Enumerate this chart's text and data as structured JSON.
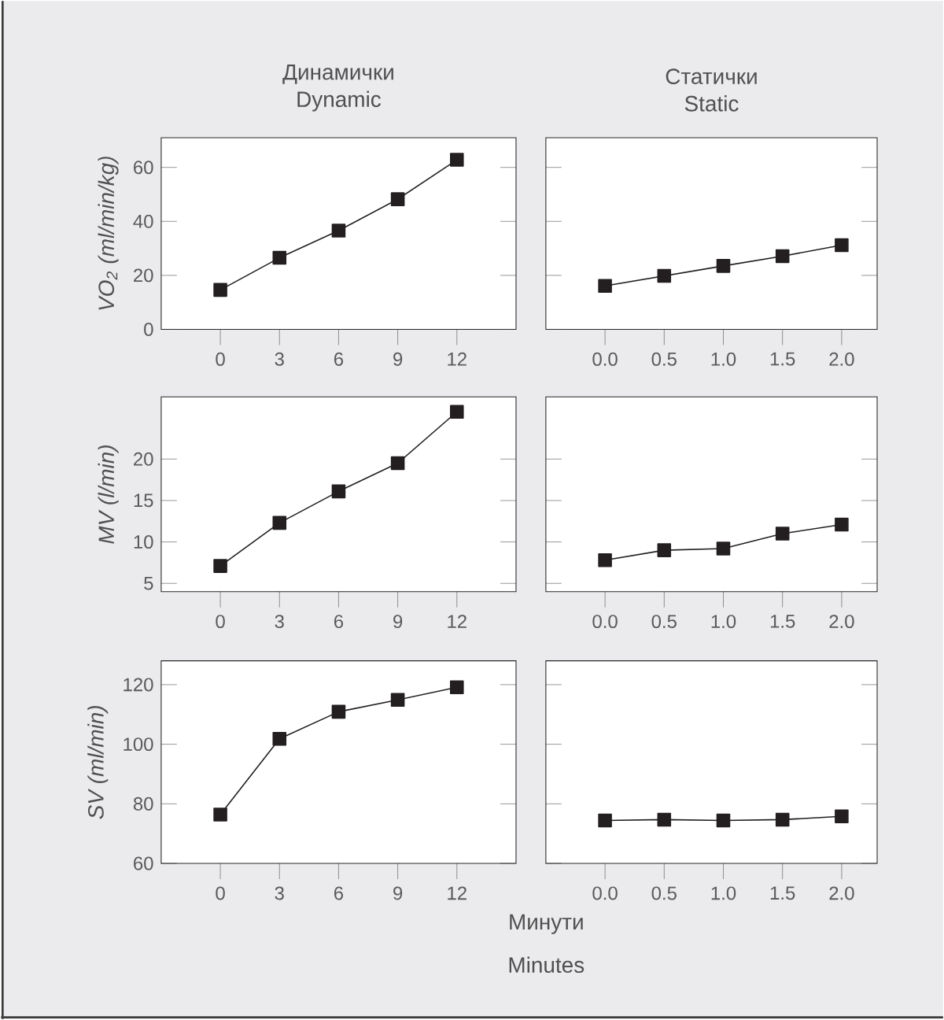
{
  "chart_data": [
    {
      "type": "line",
      "title": "Динамички",
      "subtitle": "Dynamic",
      "ylabel": "VO$_{2}$ (ml/min/kg)",
      "x": [
        0,
        3,
        6,
        9,
        12
      ],
      "values": [
        14.6,
        26.5,
        36.6,
        48.2,
        62.8
      ],
      "color": "#231f20",
      "marker": "square",
      "xlim": [
        -3,
        15
      ],
      "xticks": [
        0,
        3,
        6,
        9,
        12
      ],
      "ylim": [
        0,
        71
      ],
      "yticks": [
        0,
        20,
        40,
        60
      ]
    },
    {
      "type": "line",
      "title": "Статички",
      "subtitle": "Static",
      "x": [
        0,
        0.5,
        1,
        1.5,
        2
      ],
      "values": [
        16.1,
        19.8,
        23.5,
        27.1,
        31.2
      ],
      "color": "#231f20",
      "marker": "square",
      "xlim": [
        -0.5,
        2.3
      ],
      "xticks": [
        {
          "value": 0,
          "label": "0.0"
        },
        0.5,
        {
          "value": 1,
          "label": "1.0"
        },
        1.5,
        {
          "value": 2,
          "label": "2.0"
        }
      ],
      "ylim": [
        0,
        71
      ],
      "yticks": [
        0,
        20,
        40,
        60
      ],
      "tick_labels": "x"
    },
    {
      "type": "line",
      "ylabel": "MV (l/min)",
      "x": [
        0,
        3,
        6,
        9,
        12
      ],
      "values": [
        7.1,
        12.3,
        16.1,
        19.5,
        25.7
      ],
      "color": "#231f20",
      "marker": "square",
      "xlim": [
        -3,
        15
      ],
      "xticks": [
        0,
        3,
        6,
        9,
        12
      ],
      "ylim": [
        4,
        27.5
      ],
      "yticks": [
        5,
        10,
        15,
        20
      ]
    },
    {
      "type": "line",
      "x": [
        0,
        0.5,
        1,
        1.5,
        2
      ],
      "values": [
        7.8,
        9.0,
        9.2,
        11.0,
        12.1
      ],
      "color": "#231f20",
      "marker": "square",
      "xlim": [
        -0.5,
        2.3
      ],
      "xticks": [
        {
          "value": 0,
          "label": "0.0"
        },
        0.5,
        {
          "value": 1,
          "label": "1.0"
        },
        1.5,
        {
          "value": 2,
          "label": "2.0"
        }
      ],
      "ylim": [
        4,
        27.5
      ],
      "yticks": [
        5,
        10,
        15,
        20
      ],
      "tick_labels": "x"
    },
    {
      "type": "line",
      "ylabel": "SV (ml/min)",
      "x": [
        0,
        3,
        6,
        9,
        12
      ],
      "values": [
        76.4,
        101.8,
        110.9,
        114.9,
        119.1
      ],
      "color": "#231f20",
      "marker": "square",
      "xlim": [
        -3,
        15
      ],
      "xticks": [
        0,
        3,
        6,
        9,
        12
      ],
      "ylim": [
        60,
        128
      ],
      "yticks": [
        60,
        80,
        100,
        120
      ],
      "annotations": [
        "Минути",
        "Minutes"
      ]
    },
    {
      "type": "line",
      "x": [
        0,
        0.5,
        1,
        1.5,
        2
      ],
      "values": [
        74.4,
        74.7,
        74.4,
        74.7,
        75.8
      ],
      "color": "#231f20",
      "marker": "square",
      "xlim": [
        -0.5,
        2.3
      ],
      "xticks": [
        {
          "value": 0,
          "label": "0.0"
        },
        0.5,
        {
          "value": 1,
          "label": "1.0"
        },
        1.5,
        {
          "value": 2,
          "label": "2.0"
        }
      ],
      "ylim": [
        60,
        128
      ],
      "yticks": [
        60,
        80,
        100,
        120
      ],
      "tick_labels": "x"
    }
  ]
}
